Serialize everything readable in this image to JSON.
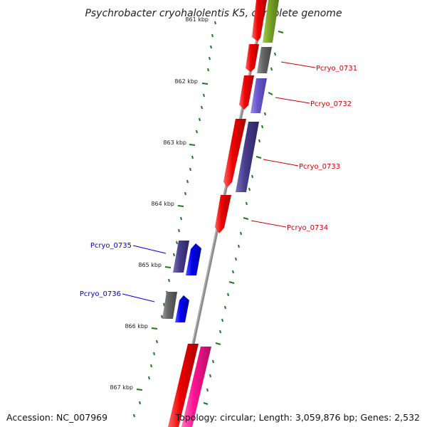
{
  "title": "Psychrobacter cryohalolentis K5, complete genome",
  "accession_text": "Accession: NC_007969",
  "topology_text": "Topology: circular; Length: 3,059,876 bp; Genes: 2,532",
  "kbp_labels": [
    "861 kbp",
    "862 kbp",
    "863 kbp",
    "864 kbp",
    "865 kbp",
    "866 kbp",
    "867 kbp"
  ],
  "gene_labels": [
    {
      "text": "Pcryo_0731",
      "color": "#cc0000"
    },
    {
      "text": "Pcryo_0732",
      "color": "#cc0000"
    },
    {
      "text": "Pcryo_0733",
      "color": "#cc0000"
    },
    {
      "text": "Pcryo_0734",
      "color": "#cc0000"
    },
    {
      "text": "Pcryo_0735",
      "color": "#0000cc"
    },
    {
      "text": "Pcryo_0736",
      "color": "#0000cc"
    }
  ],
  "colors": {
    "backbone": "#888888",
    "tick": "#1a7a1a",
    "red": "#ee0000",
    "olive": "#7aa628",
    "gray": "#666666",
    "slate": "#6a5acd",
    "darkslate": "#483d8b",
    "blue": "#0000ee",
    "pink": "#ff1493"
  }
}
